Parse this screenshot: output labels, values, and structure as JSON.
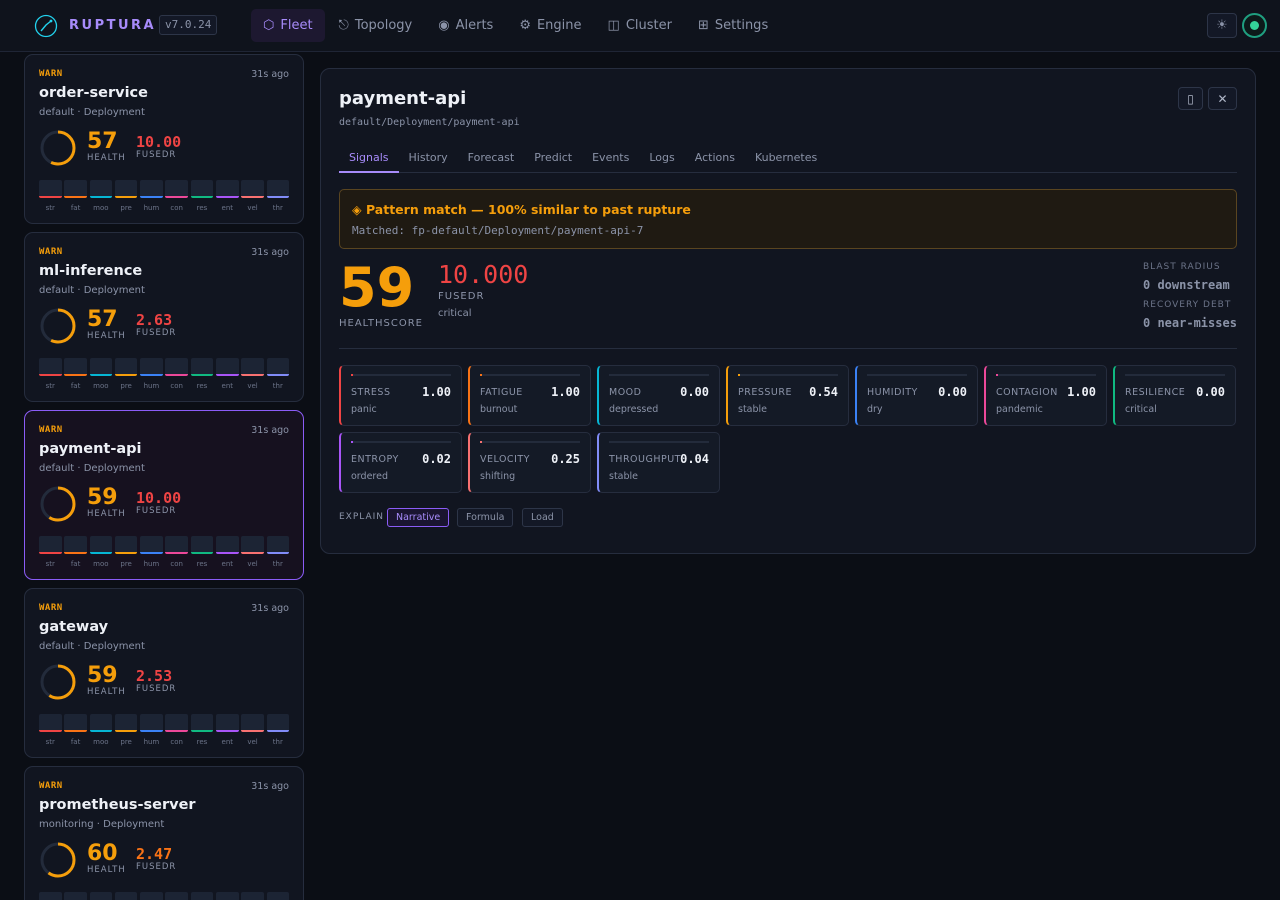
{
  "app": {
    "name": "RUPTURA",
    "version": "v7.0.24"
  },
  "nav": [
    {
      "label": "Fleet",
      "icon": "⬡",
      "icon_name": "hexagon-icon",
      "active": true
    },
    {
      "label": "Topology",
      "icon": "⎋",
      "icon_name": "topology-icon",
      "active": false
    },
    {
      "label": "Alerts",
      "icon": "◉",
      "icon_name": "alerts-icon",
      "active": false
    },
    {
      "label": "Engine",
      "icon": "⚙",
      "icon_name": "gear-icon",
      "active": false
    },
    {
      "label": "Cluster",
      "icon": "◫",
      "icon_name": "cluster-icon",
      "active": false
    },
    {
      "label": "Settings",
      "icon": "⊞",
      "icon_name": "settings-grid-icon",
      "active": false
    }
  ],
  "header": {
    "theme_icon": "☀",
    "status": "connected"
  },
  "signal_colors": [
    "#ef4444",
    "#f97316",
    "#06b6d4",
    "#f59e0b",
    "#3b82f6",
    "#ec4899",
    "#10b981",
    "#a855f7",
    "#f87171",
    "#818cf8"
  ],
  "bar_labels": [
    "str",
    "fat",
    "moo",
    "pre",
    "hum",
    "con",
    "res",
    "ent",
    "vel",
    "thr"
  ],
  "fleet": [
    {
      "severity": "WARN",
      "ago": "31s ago",
      "name": "order-service",
      "namespace": "default · Deployment",
      "health": 57,
      "health_label": "HEALTH",
      "fused": "10.00",
      "fused_label": "FUSEDR",
      "fused_color": "#ef4444",
      "selected": false
    },
    {
      "severity": "WARN",
      "ago": "31s ago",
      "name": "ml-inference",
      "namespace": "default · Deployment",
      "health": 57,
      "health_label": "HEALTH",
      "fused": "2.63",
      "fused_label": "FUSEDR",
      "fused_color": "#ef4444",
      "selected": false
    },
    {
      "severity": "WARN",
      "ago": "31s ago",
      "name": "payment-api",
      "namespace": "default · Deployment",
      "health": 59,
      "health_label": "HEALTH",
      "fused": "10.00",
      "fused_label": "FUSEDR",
      "fused_color": "#ef4444",
      "selected": true
    },
    {
      "severity": "WARN",
      "ago": "31s ago",
      "name": "gateway",
      "namespace": "default · Deployment",
      "health": 59,
      "health_label": "HEALTH",
      "fused": "2.53",
      "fused_label": "FUSEDR",
      "fused_color": "#ef4444",
      "selected": false
    },
    {
      "severity": "WARN",
      "ago": "31s ago",
      "name": "prometheus-server",
      "namespace": "monitoring · Deployment",
      "health": 60,
      "health_label": "HEALTH",
      "fused": "2.47",
      "fused_label": "FUSEDR",
      "fused_color": "#f97316",
      "selected": false
    }
  ],
  "detail": {
    "title": "payment-api",
    "path": "default/Deployment/payment-api",
    "tabs": [
      {
        "label": "Signals",
        "active": true
      },
      {
        "label": "History",
        "active": false
      },
      {
        "label": "Forecast",
        "active": false
      },
      {
        "label": "Predict",
        "active": false
      },
      {
        "label": "Events",
        "active": false
      },
      {
        "label": "Logs",
        "active": false
      },
      {
        "label": "Actions",
        "active": false
      },
      {
        "label": "Kubernetes",
        "active": false
      }
    ],
    "pattern": {
      "title": "◈ Pattern match — 100% similar to past rupture",
      "matched": "Matched: fp-default/Deployment/payment-api-7"
    },
    "health": {
      "value": "59",
      "label": "HEALTHSCORE"
    },
    "fused": {
      "value": "10.000",
      "label": "FUSEDR",
      "state": "critical"
    },
    "blast_radius": {
      "label": "BLAST RADIUS",
      "value": "0 downstream"
    },
    "recovery_debt": {
      "label": "RECOVERY DEBT",
      "value": "0 near-misses"
    },
    "signals": [
      {
        "name": "STRESS",
        "value": "1.00",
        "state": "panic",
        "color": "#ef4444",
        "fill": 0.01
      },
      {
        "name": "FATIGUE",
        "value": "1.00",
        "state": "burnout",
        "color": "#f97316",
        "fill": 0.01
      },
      {
        "name": "MOOD",
        "value": "0.00",
        "state": "depressed",
        "color": "#06b6d4",
        "fill": 0
      },
      {
        "name": "PRESSURE",
        "value": "0.54",
        "state": "stable",
        "color": "#f59e0b",
        "fill": 0.005
      },
      {
        "name": "HUMIDITY",
        "value": "0.00",
        "state": "dry",
        "color": "#3b82f6",
        "fill": 0
      },
      {
        "name": "CONTAGION",
        "value": "1.00",
        "state": "pandemic",
        "color": "#ec4899",
        "fill": 0.01
      },
      {
        "name": "RESILIENCE",
        "value": "0.00",
        "state": "critical",
        "color": "#10b981",
        "fill": 0
      },
      {
        "name": "ENTROPY",
        "value": "0.02",
        "state": "ordered",
        "color": "#a855f7",
        "fill": 0.01
      },
      {
        "name": "VELOCITY",
        "value": "0.25",
        "state": "shifting",
        "color": "#f87171",
        "fill": 0.01
      },
      {
        "name": "THROUGHPUT",
        "value": "0.04",
        "state": "stable",
        "color": "#818cf8",
        "fill": 0
      }
    ],
    "explain": {
      "label": "EXPLAIN",
      "options": [
        {
          "label": "Narrative",
          "active": true
        },
        {
          "label": "Formula",
          "active": false
        },
        {
          "label": "Load",
          "active": false
        }
      ]
    }
  }
}
